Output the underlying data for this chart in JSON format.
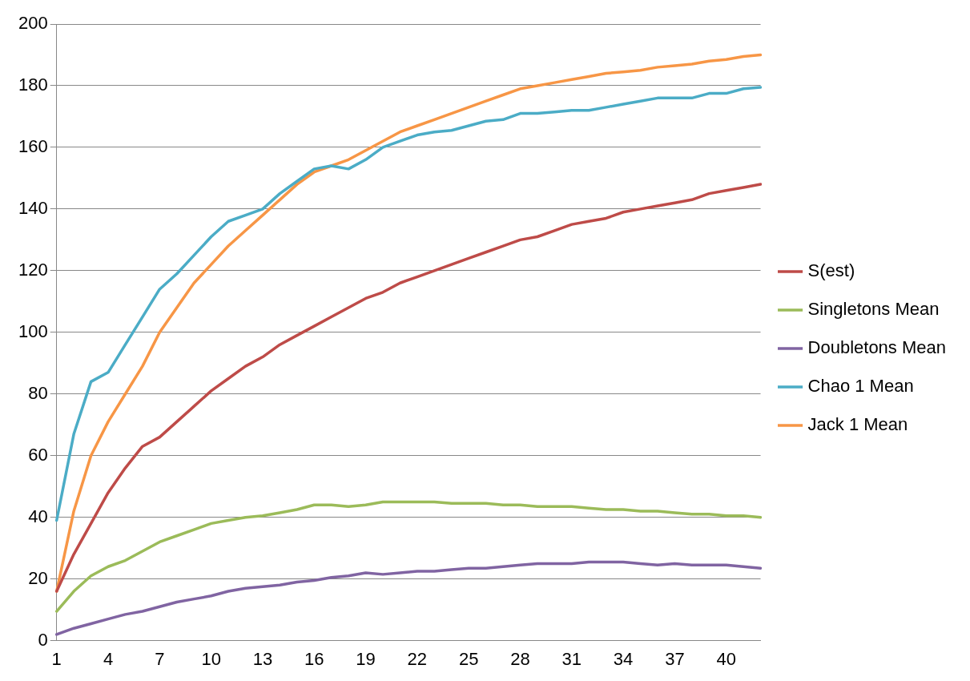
{
  "chart_data": {
    "type": "line",
    "categories": [
      "1",
      null,
      null,
      "4",
      null,
      null,
      "7",
      null,
      null,
      "10",
      null,
      null,
      "13",
      null,
      null,
      "16",
      null,
      null,
      "19",
      null,
      null,
      "22",
      null,
      null,
      "25",
      null,
      null,
      "28",
      null,
      null,
      "31",
      null,
      null,
      "34",
      null,
      null,
      "37",
      null,
      null,
      "40",
      null,
      null
    ],
    "series": [
      {
        "name": "S(est)",
        "color": "#be4b48",
        "values": [
          16,
          28,
          38,
          48,
          56,
          63,
          66,
          71,
          76,
          81,
          85,
          89,
          92,
          96,
          99,
          102,
          105,
          108,
          111,
          113,
          116,
          118,
          120,
          122,
          124,
          126,
          128,
          130,
          131,
          133,
          135,
          136,
          137,
          139,
          140,
          141,
          142,
          143,
          145,
          146,
          147,
          148
        ]
      },
      {
        "name": "Singletons Mean",
        "color": "#9bbb59",
        "values": [
          9.5,
          16,
          21,
          24,
          26,
          29,
          32,
          34,
          36,
          38,
          39,
          40,
          40.5,
          41.5,
          42.5,
          44,
          44,
          43.5,
          44,
          45,
          45,
          45,
          45,
          44.5,
          44.5,
          44.5,
          44,
          44,
          43.5,
          43.5,
          43.5,
          43,
          42.5,
          42.5,
          42,
          42,
          41.5,
          41,
          41,
          40.5,
          40.5,
          40
        ]
      },
      {
        "name": "Doubletons Mean",
        "color": "#8064a2",
        "values": [
          2,
          4,
          5.5,
          7,
          8.5,
          9.5,
          11,
          12.5,
          13.5,
          14.5,
          16,
          17,
          17.5,
          18,
          19,
          19.5,
          20.5,
          21,
          22,
          21.5,
          22,
          22.5,
          22.5,
          23,
          23.5,
          23.5,
          24,
          24.5,
          25,
          25,
          25,
          25.5,
          25.5,
          25.5,
          25,
          24.5,
          25,
          24.5,
          24.5,
          24.5,
          24,
          23.5
        ]
      },
      {
        "name": "Chao 1 Mean",
        "color": "#4bacc6",
        "values": [
          39,
          67,
          84,
          87,
          96,
          105,
          114,
          119,
          125,
          131,
          136,
          138,
          140,
          145,
          149,
          153,
          154,
          153,
          156,
          160,
          162,
          164,
          165,
          165.5,
          167,
          168.5,
          169,
          171,
          171,
          171.5,
          172,
          172,
          173,
          174,
          175,
          176,
          176,
          176,
          177.5,
          177.5,
          179,
          179.5
        ]
      },
      {
        "name": "Jack 1 Mean",
        "color": "#f79646",
        "values": [
          16,
          42,
          60,
          71,
          80,
          89,
          100,
          108,
          116,
          122,
          128,
          133,
          138,
          143,
          148,
          152,
          154,
          156,
          159,
          162,
          165,
          167,
          169,
          171,
          173,
          175,
          177,
          179,
          180,
          181,
          182,
          183,
          184,
          184.5,
          185,
          186,
          186.5,
          187,
          188,
          188.5,
          189.5,
          190
        ]
      }
    ],
    "ylim": [
      0,
      200
    ],
    "yticks": [
      0,
      20,
      40,
      60,
      80,
      100,
      120,
      140,
      160,
      180,
      200
    ],
    "grid": "y",
    "legend": "right",
    "marker": "none",
    "line_style": "solid"
  }
}
